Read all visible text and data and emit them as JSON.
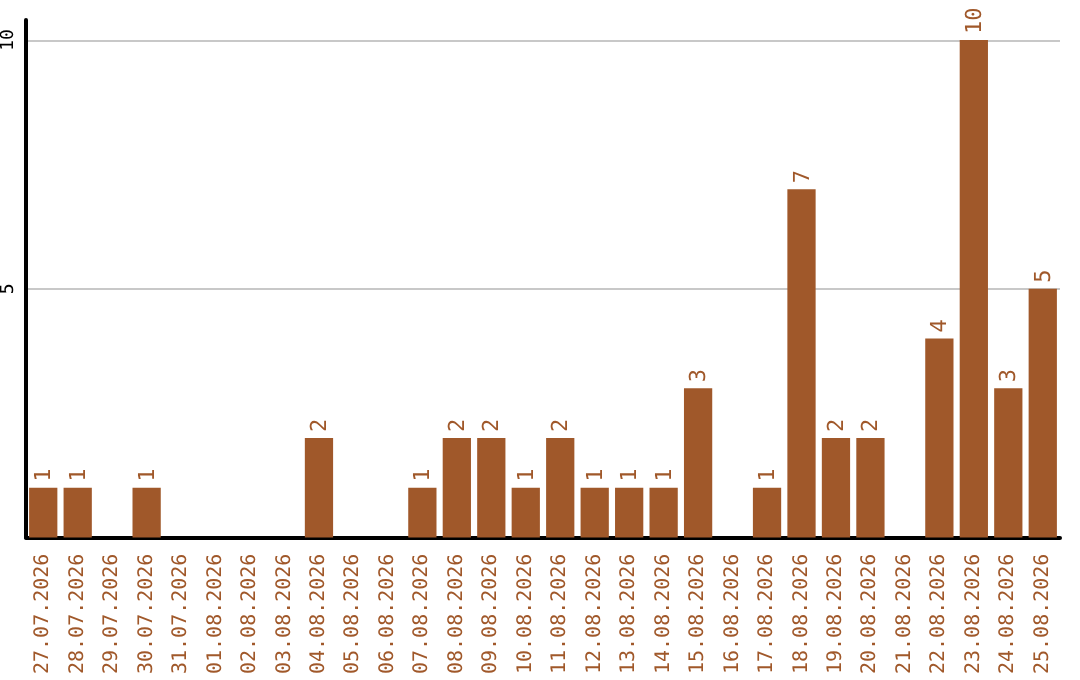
{
  "chart_data": {
    "type": "bar",
    "categories": [
      "27.07.2026",
      "28.07.2026",
      "29.07.2026",
      "30.07.2026",
      "31.07.2026",
      "01.08.2026",
      "02.08.2026",
      "03.08.2026",
      "04.08.2026",
      "05.08.2026",
      "06.08.2026",
      "07.08.2026",
      "08.08.2026",
      "09.08.2026",
      "10.08.2026",
      "11.08.2026",
      "12.08.2026",
      "13.08.2026",
      "14.08.2026",
      "15.08.2026",
      "16.08.2026",
      "17.08.2026",
      "18.08.2026",
      "19.08.2026",
      "20.08.2026",
      "21.08.2026",
      "22.08.2026",
      "23.08.2026",
      "24.08.2026",
      "25.08.2026"
    ],
    "values": [
      1,
      1,
      0,
      1,
      0,
      0,
      0,
      0,
      2,
      0,
      0,
      1,
      2,
      2,
      1,
      2,
      1,
      1,
      1,
      3,
      0,
      1,
      7,
      2,
      2,
      0,
      4,
      10,
      3,
      5
    ],
    "value_labels": [
      "1",
      "1",
      null,
      "1",
      null,
      null,
      null,
      null,
      "2",
      null,
      null,
      "1",
      "2",
      "2",
      "1",
      "2",
      "1",
      "1",
      "1",
      "3",
      null,
      "1",
      "7",
      "2",
      "2",
      null,
      "4",
      "10",
      "3",
      "5"
    ],
    "color": "#a0582a",
    "ylim": [
      0,
      10.4
    ],
    "yticks": [
      5,
      10
    ],
    "grid": "y"
  }
}
